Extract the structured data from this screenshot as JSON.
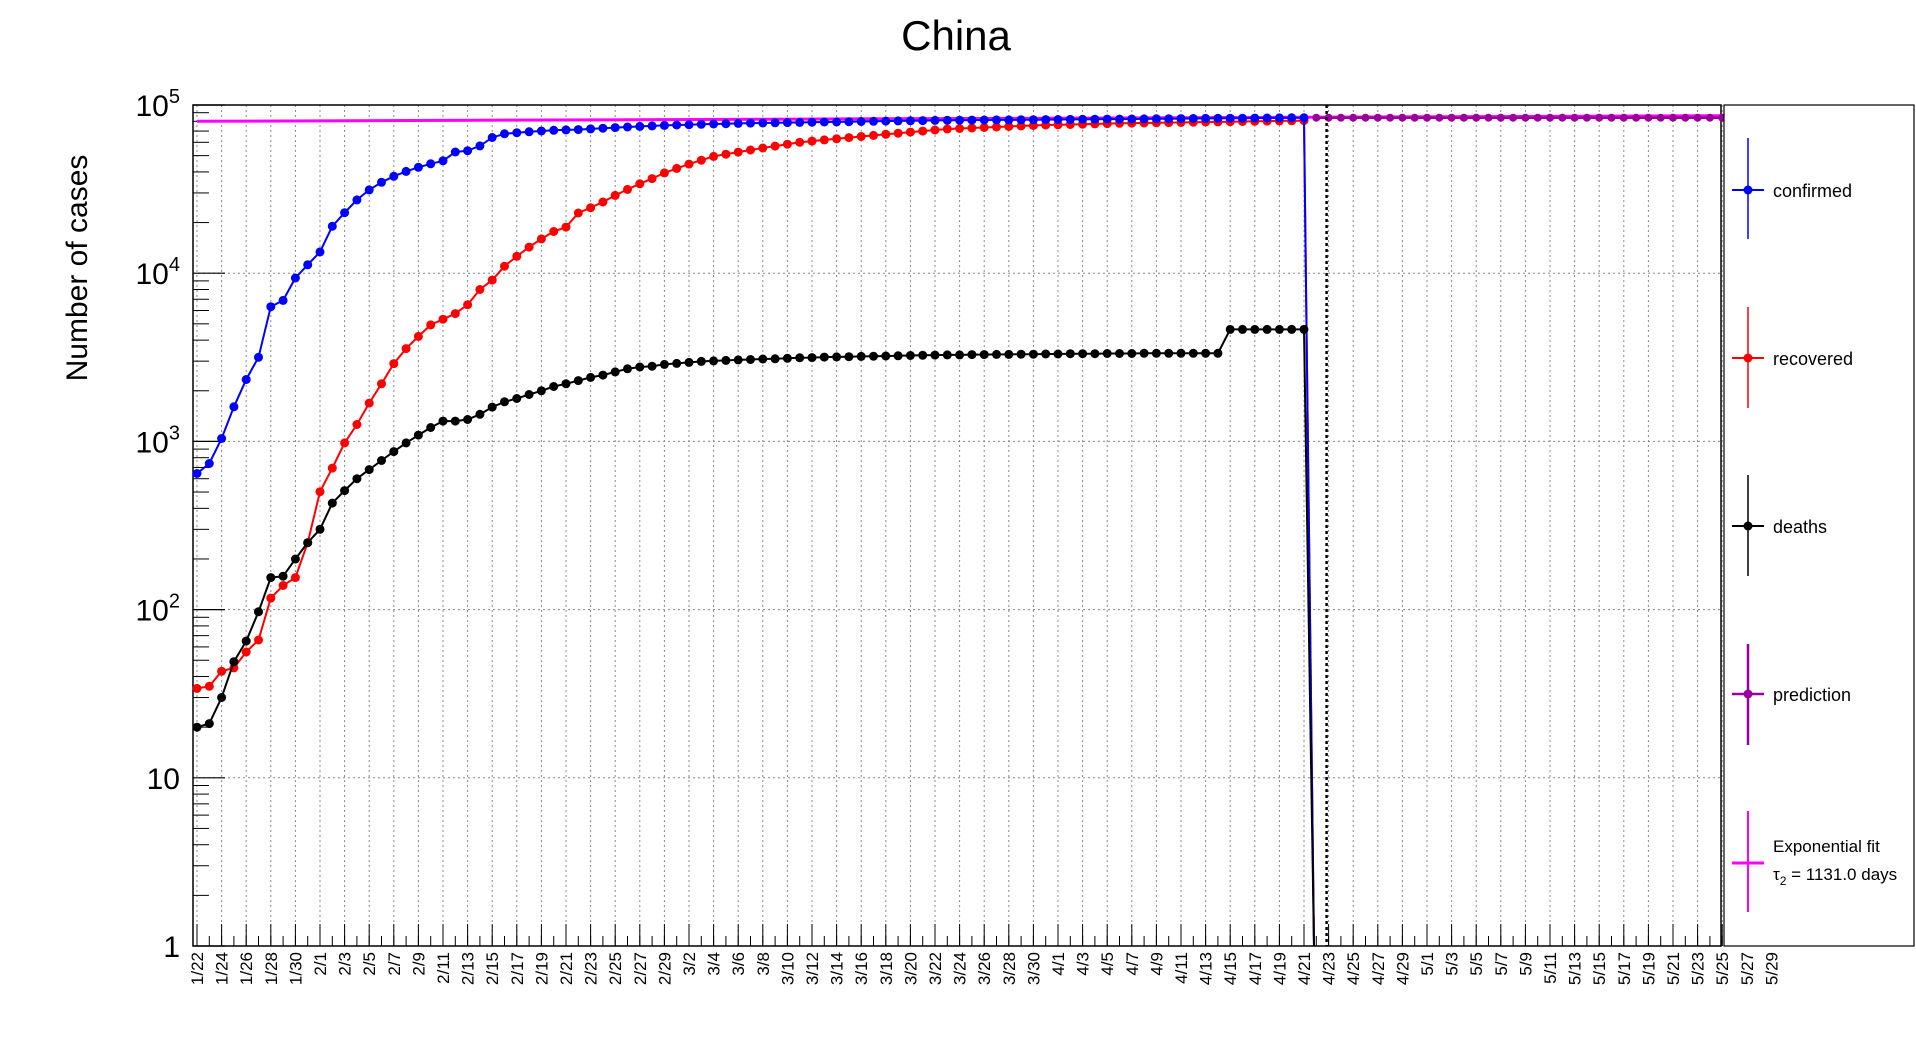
{
  "chart_data": {
    "type": "line",
    "title": "China",
    "ylabel": "Number of cases",
    "xlabel": "",
    "yscale": "log",
    "ylim": [
      1,
      100000
    ],
    "xlim": [
      "1/22",
      "5/31"
    ],
    "grid": true,
    "legend_position": "right",
    "y_tick_labels": [
      "1",
      "10",
      "10^2",
      "10^3",
      "10^4",
      "10^5"
    ],
    "x_tick_labels": [
      "1/22",
      "1/24",
      "1/26",
      "1/28",
      "1/30",
      "2/1",
      "2/3",
      "2/5",
      "2/7",
      "2/9",
      "2/11",
      "2/13",
      "2/15",
      "2/17",
      "2/19",
      "2/21",
      "2/23",
      "2/25",
      "2/27",
      "2/29",
      "3/2",
      "3/4",
      "3/6",
      "3/8",
      "3/10",
      "3/12",
      "3/14",
      "3/16",
      "3/18",
      "3/20",
      "3/22",
      "3/24",
      "3/26",
      "3/28",
      "3/30",
      "4/1",
      "4/3",
      "4/5",
      "4/7",
      "4/9",
      "4/11",
      "4/13",
      "4/15",
      "4/17",
      "4/19",
      "4/21",
      "4/23",
      "4/25",
      "4/27",
      "4/29",
      "5/1",
      "5/3",
      "5/5",
      "5/7",
      "5/9",
      "5/11",
      "5/13",
      "5/15",
      "5/17",
      "5/19",
      "5/21",
      "5/23",
      "5/25",
      "5/27",
      "5/29"
    ],
    "current_date_marker": "4/23",
    "series": [
      {
        "name": "confirmed",
        "color": "#0000ff",
        "start_date": "1/22",
        "values": [
          644,
          739,
          1040,
          1605,
          2332,
          3162,
          6319,
          6890,
          9359,
          11218,
          13381,
          19013,
          22900,
          27260,
          31290,
          34730,
          37680,
          40300,
          42640,
          44710,
          46580,
          52530,
          53500,
          57120,
          64100,
          67440,
          68430,
          69300,
          70030,
          70690,
          71130,
          71430,
          72080,
          72740,
          73370,
          74000,
          74600,
          75100,
          75600,
          76000,
          76400,
          76800,
          77100,
          77400,
          77700,
          78000,
          78200,
          78400,
          78600,
          78800,
          79000,
          79200,
          79400,
          79600,
          79800,
          80000,
          80200,
          80400,
          80600,
          80800,
          81000,
          81100,
          81200,
          81300,
          81400,
          81500,
          81600,
          81700,
          81800,
          81900,
          82000,
          82100,
          82200,
          82300,
          82400,
          82500,
          82600,
          82700,
          82800,
          82900,
          83000,
          83100,
          83200,
          83300,
          83400,
          83500,
          83600,
          83700,
          83800,
          83900,
          84000
        ]
      },
      {
        "name": "recovered",
        "color": "#ff0000",
        "start_date": "1/22",
        "values": [
          34,
          35,
          43,
          45,
          56,
          66,
          117,
          139,
          155,
          250,
          502,
          694,
          980,
          1260,
          1690,
          2200,
          2900,
          3560,
          4210,
          4930,
          5330,
          5750,
          6500,
          8000,
          9100,
          11000,
          12600,
          14300,
          16000,
          17700,
          18800,
          22800,
          24500,
          26500,
          29000,
          31500,
          34000,
          36500,
          39500,
          42000,
          44500,
          47000,
          49500,
          51000,
          52500,
          54000,
          55500,
          57000,
          58500,
          60000,
          61000,
          62000,
          63000,
          64000,
          65000,
          66000,
          67000,
          68000,
          69000,
          70000,
          71000,
          72000,
          72500,
          73000,
          73500,
          74000,
          74500,
          75000,
          75500,
          76000,
          76300,
          76600,
          76900,
          77200,
          77500,
          77800,
          78000,
          78200,
          78400,
          78600,
          78800,
          79000,
          79200,
          79400,
          79600,
          79800,
          80000,
          80200,
          80400,
          80600,
          80800
        ]
      },
      {
        "name": "deaths",
        "color": "#000000",
        "start_date": "1/22",
        "values": [
          20,
          21,
          30,
          49,
          65,
          97,
          155,
          158,
          200,
          250,
          300,
          430,
          510,
          600,
          680,
          770,
          870,
          980,
          1090,
          1210,
          1320,
          1320,
          1350,
          1450,
          1600,
          1720,
          1800,
          1900,
          2000,
          2120,
          2200,
          2300,
          2400,
          2480,
          2590,
          2700,
          2770,
          2800,
          2870,
          2910,
          2950,
          2990,
          3010,
          3030,
          3050,
          3070,
          3090,
          3100,
          3120,
          3140,
          3150,
          3170,
          3180,
          3190,
          3200,
          3210,
          3220,
          3230,
          3240,
          3250,
          3260,
          3270,
          3270,
          3280,
          3280,
          3290,
          3290,
          3300,
          3300,
          3310,
          3310,
          3320,
          3320,
          3320,
          3330,
          3330,
          3330,
          3340,
          3340,
          3340,
          3340,
          3340,
          3340,
          3340,
          4630,
          4630,
          4630,
          4630,
          4630,
          4630,
          4630
        ]
      },
      {
        "name": "prediction",
        "color": "#990099",
        "start_date": "4/22",
        "end_date": "5/30",
        "value": 84000
      }
    ],
    "fit": {
      "name": "Exponential fit",
      "label": "τ₂ = 1131.0 days",
      "tau_symbol": "τ",
      "tau_subscript": "2",
      "tau_text": " = 1131.0 days",
      "tau_days": 1131.0,
      "color": "#ff00ff",
      "start_date": "1/22",
      "end_date": "5/30",
      "start_value": 80000
    }
  }
}
